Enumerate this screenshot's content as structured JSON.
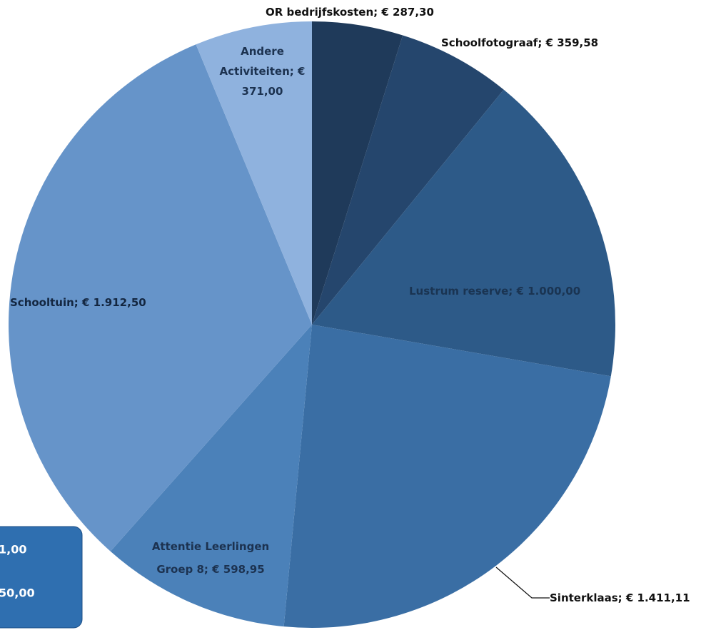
{
  "chart_data": {
    "type": "pie",
    "values": [
      287.3,
      359.58,
      1000.0,
      1411.11,
      598.95,
      1912.5,
      371.0
    ],
    "value_labels": [
      "OR bedrijfskosten; € 287,30",
      "Schoolfotograaf; € 359,58",
      "Lustrum reserve; € 1.000,00",
      "Sinterklaas; € 1.411,11",
      "Attentie Leerlingen Groep 8; € 598,95",
      "Schooltuin; € 1.912,50",
      "Andere Activiteiten; € 371,00"
    ],
    "colors": [
      "#1f3a5a",
      "#25466d",
      "#2d5a88",
      "#3a6ea4",
      "#4b81b9",
      "#6694c9",
      "#8fb2de"
    ],
    "annotations": [
      "1,00",
      "50,00"
    ]
  }
}
